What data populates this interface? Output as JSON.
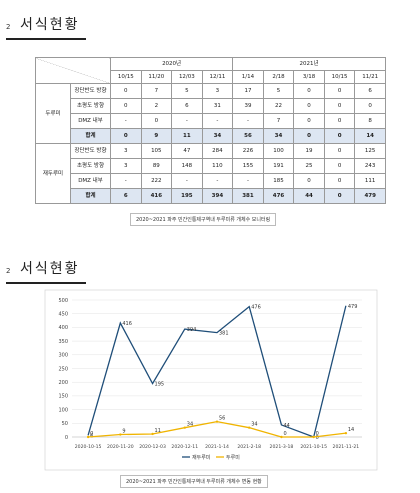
{
  "section1": {
    "number": "2",
    "title": "서식현황"
  },
  "table": {
    "years": [
      "2020년",
      "2021년"
    ],
    "dates": [
      "10/15",
      "11/20",
      "12/03",
      "12/11",
      "1/14",
      "2/18",
      "3/18",
      "10/15",
      "11/21"
    ],
    "groups": [
      {
        "name": "두루미",
        "rows": [
          {
            "label": "장단반도 방향",
            "values": [
              0,
              7,
              5,
              3,
              17,
              5,
              0,
              0,
              6
            ]
          },
          {
            "label": "초평도 방향",
            "values": [
              0,
              2,
              6,
              31,
              39,
              22,
              0,
              0,
              0
            ]
          },
          {
            "label": "DMZ 내부",
            "values": [
              "-",
              0,
              "-",
              "-",
              "-",
              7,
              0,
              0,
              8
            ]
          },
          {
            "label": "합계",
            "values": [
              0,
              9,
              11,
              34,
              56,
              34,
              0,
              0,
              14
            ]
          }
        ]
      },
      {
        "name": "재두루미",
        "rows": [
          {
            "label": "장단반도 방향",
            "values": [
              3,
              105,
              47,
              284,
              226,
              100,
              19,
              0,
              125
            ]
          },
          {
            "label": "초평도 방향",
            "values": [
              3,
              89,
              148,
              110,
              155,
              191,
              25,
              0,
              243
            ]
          },
          {
            "label": "DMZ 내부",
            "values": [
              "-",
              222,
              "-",
              "-",
              "-",
              185,
              0,
              0,
              111
            ]
          },
          {
            "label": "합계",
            "values": [
              6,
              416,
              195,
              394,
              381,
              476,
              44,
              0,
              479
            ]
          }
        ]
      }
    ],
    "caption": "2020~2021 파주 민간인통제구역내 두루미류 개체수 모니터링"
  },
  "section2": {
    "number": "2",
    "title": "서식현황"
  },
  "chart_data": {
    "type": "line",
    "categories": [
      "2020-10-15",
      "2020-11-20",
      "2020-12-03",
      "2020-12-11",
      "2021-1-14",
      "2021-2-18",
      "2021-3-18",
      "2021-10-15",
      "2021-11-21"
    ],
    "series": [
      {
        "name": "재두루미",
        "color": "#1f4e79",
        "values": [
          6,
          416,
          195,
          394,
          381,
          476,
          44,
          0,
          479
        ]
      },
      {
        "name": "두루미",
        "color": "#f0b400",
        "values": [
          0,
          9,
          11,
          34,
          56,
          34,
          0,
          0,
          14
        ]
      }
    ],
    "ylim": [
      0,
      500
    ],
    "yticks": [
      0,
      50,
      100,
      150,
      200,
      250,
      300,
      350,
      400,
      450,
      500
    ],
    "grid": true,
    "legend": "bottom",
    "caption": "2020~2021 파주 민간인통제구역내 두루미류 개체수 변동 현황"
  }
}
